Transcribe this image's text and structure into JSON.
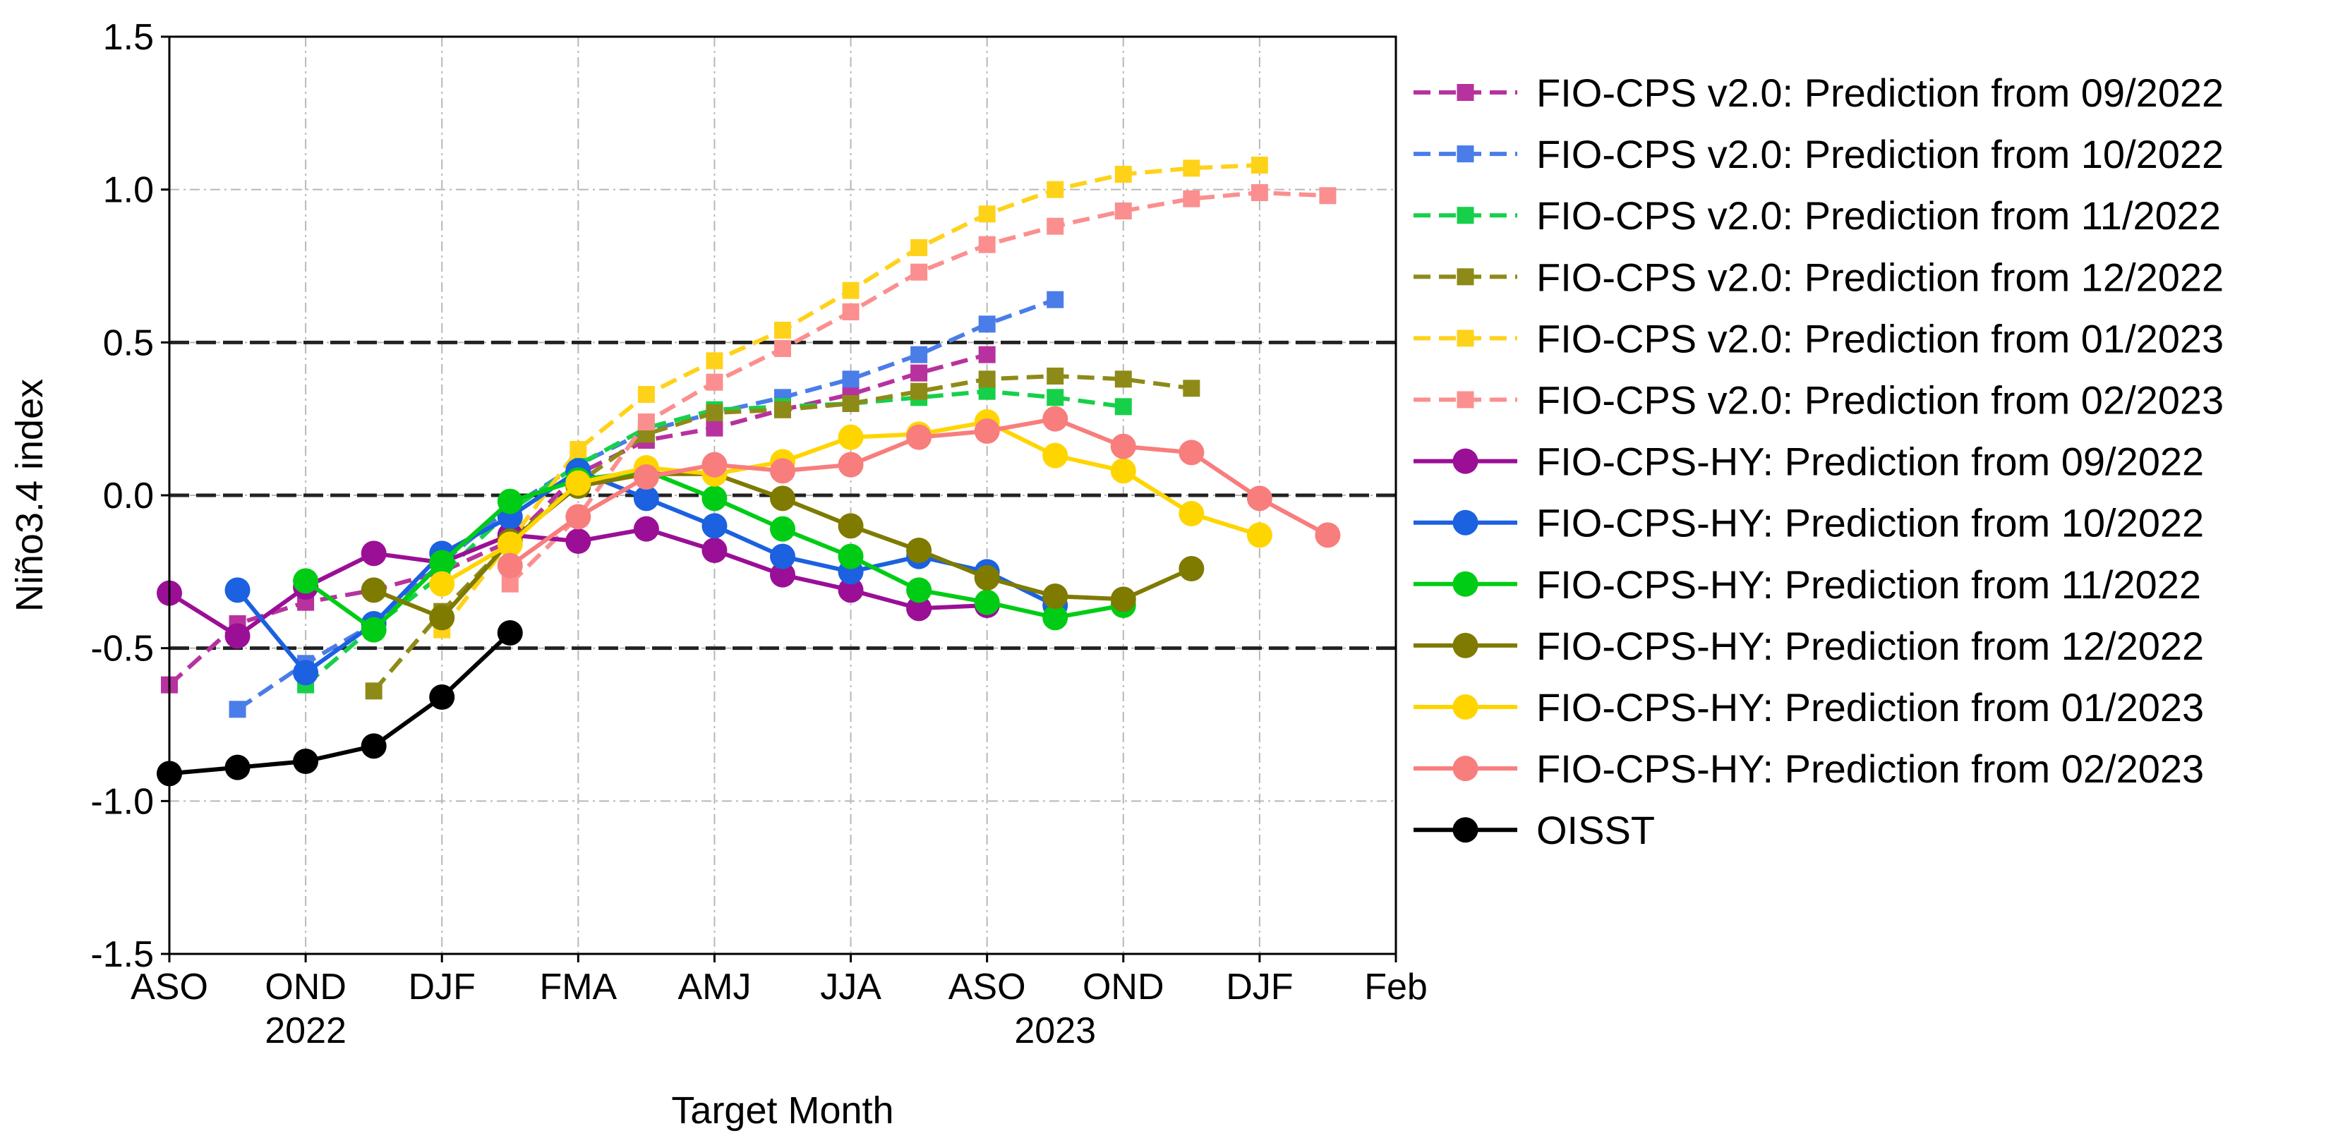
{
  "chart_data": {
    "type": "line",
    "xlabel": "Target Month",
    "ylabel": "Niño3.4 index",
    "xlim": [
      0,
      18
    ],
    "ylim": [
      -1.5,
      1.5
    ],
    "x_ticks": [
      {
        "x": 0,
        "label": "ASO"
      },
      {
        "x": 2,
        "label": "OND"
      },
      {
        "x": 4,
        "label": "DJF"
      },
      {
        "x": 6,
        "label": "FMA"
      },
      {
        "x": 8,
        "label": "AMJ"
      },
      {
        "x": 10,
        "label": "JJA"
      },
      {
        "x": 12,
        "label": "ASO"
      },
      {
        "x": 14,
        "label": "OND"
      },
      {
        "x": 16,
        "label": "DJF"
      },
      {
        "x": 18,
        "label": "Feb"
      }
    ],
    "year_labels": [
      {
        "x": 2,
        "label": "2022"
      },
      {
        "x": 13,
        "label": "2023"
      }
    ],
    "y_ticks": [
      {
        "y": 1.5,
        "label": "1.5"
      },
      {
        "y": 1.0,
        "label": "1.0"
      },
      {
        "y": 0.5,
        "label": "0.5"
      },
      {
        "y": 0.0,
        "label": "0.0"
      },
      {
        "y": -0.5,
        "label": "-0.5"
      },
      {
        "y": -1.0,
        "label": "-1.0"
      },
      {
        "y": -1.5,
        "label": "-1.5"
      }
    ],
    "reference_lines": [
      0.5,
      0.0,
      -0.5
    ],
    "grid": true,
    "legend_position": "outside-right",
    "series": [
      {
        "name": "FIO-CPS v2.0: Prediction from 09/2022",
        "color": "#b7329e",
        "style": "dashed",
        "marker": "square",
        "x": [
          0,
          1,
          2,
          3,
          4,
          5,
          6,
          7,
          8,
          9,
          10,
          11,
          12
        ],
        "values": [
          -0.62,
          -0.42,
          -0.35,
          -0.31,
          -0.25,
          -0.15,
          0.07,
          0.18,
          0.22,
          0.28,
          0.33,
          0.4,
          0.46
        ]
      },
      {
        "name": "FIO-CPS v2.0: Prediction from 10/2022",
        "color": "#4a7de8",
        "style": "dashed",
        "marker": "square",
        "x": [
          1,
          2,
          3,
          4,
          5,
          6,
          7,
          8,
          9,
          10,
          11,
          12,
          13
        ],
        "values": [
          -0.7,
          -0.55,
          -0.42,
          -0.22,
          -0.04,
          0.1,
          0.21,
          0.27,
          0.32,
          0.38,
          0.46,
          0.56,
          0.64
        ]
      },
      {
        "name": "FIO-CPS v2.0: Prediction from 11/2022",
        "color": "#16d04a",
        "style": "dashed",
        "marker": "square",
        "x": [
          2,
          3,
          4,
          5,
          6,
          7,
          8,
          9,
          10,
          11,
          12,
          13,
          14
        ],
        "values": [
          -0.62,
          -0.43,
          -0.26,
          -0.05,
          0.1,
          0.22,
          0.28,
          0.29,
          0.3,
          0.32,
          0.34,
          0.32,
          0.29
        ]
      },
      {
        "name": "FIO-CPS v2.0: Prediction from 12/2022",
        "color": "#8e8a18",
        "style": "dashed",
        "marker": "square",
        "x": [
          3,
          4,
          5,
          6,
          7,
          8,
          9,
          10,
          11,
          12,
          13,
          14,
          15
        ],
        "values": [
          -0.64,
          -0.38,
          -0.15,
          0.04,
          0.2,
          0.27,
          0.28,
          0.3,
          0.34,
          0.38,
          0.39,
          0.38,
          0.35
        ]
      },
      {
        "name": "FIO-CPS v2.0: Prediction from 01/2023",
        "color": "#ffd21a",
        "style": "dashed",
        "marker": "square",
        "x": [
          4,
          5,
          6,
          7,
          8,
          9,
          10,
          11,
          12,
          13,
          14,
          15,
          16
        ],
        "values": [
          -0.44,
          -0.15,
          0.15,
          0.33,
          0.44,
          0.54,
          0.67,
          0.81,
          0.92,
          1.0,
          1.05,
          1.07,
          1.08
        ]
      },
      {
        "name": "FIO-CPS v2.0: Prediction from 02/2023",
        "color": "#fb8f8f",
        "style": "dashed",
        "marker": "square",
        "x": [
          5,
          6,
          7,
          8,
          9,
          10,
          11,
          12,
          13,
          14,
          15,
          16,
          17
        ],
        "values": [
          -0.29,
          -0.07,
          0.24,
          0.37,
          0.48,
          0.6,
          0.73,
          0.82,
          0.88,
          0.93,
          0.97,
          0.99,
          0.98
        ]
      },
      {
        "name": "FIO-CPS-HY: Prediction from 09/2022",
        "color": "#9a0f96",
        "style": "solid",
        "marker": "circle",
        "x": [
          0,
          1,
          2,
          3,
          4,
          5,
          6,
          7,
          8,
          9,
          10,
          11,
          12
        ],
        "values": [
          -0.32,
          -0.46,
          -0.3,
          -0.19,
          -0.22,
          -0.13,
          -0.15,
          -0.11,
          -0.18,
          -0.26,
          -0.31,
          -0.37,
          -0.36
        ]
      },
      {
        "name": "FIO-CPS-HY: Prediction from 10/2022",
        "color": "#1b61e0",
        "style": "solid",
        "marker": "circle",
        "x": [
          1,
          2,
          3,
          4,
          5,
          6,
          7,
          8,
          9,
          10,
          11,
          12,
          13
        ],
        "values": [
          -0.31,
          -0.58,
          -0.42,
          -0.19,
          -0.07,
          0.08,
          -0.01,
          -0.1,
          -0.2,
          -0.25,
          -0.2,
          -0.25,
          -0.36
        ]
      },
      {
        "name": "FIO-CPS-HY: Prediction from 11/2022",
        "color": "#00cc15",
        "style": "solid",
        "marker": "circle",
        "x": [
          2,
          3,
          4,
          5,
          6,
          7,
          8,
          9,
          10,
          11,
          12,
          13,
          14
        ],
        "values": [
          -0.28,
          -0.44,
          -0.22,
          -0.02,
          0.05,
          0.08,
          -0.01,
          -0.11,
          -0.2,
          -0.31,
          -0.35,
          -0.4,
          -0.36
        ]
      },
      {
        "name": "FIO-CPS-HY: Prediction from 12/2022",
        "color": "#7f7a00",
        "style": "solid",
        "marker": "circle",
        "x": [
          3,
          4,
          5,
          6,
          7,
          8,
          9,
          10,
          11,
          12,
          13,
          14,
          15
        ],
        "values": [
          -0.31,
          -0.4,
          -0.15,
          0.03,
          0.07,
          0.07,
          -0.01,
          -0.1,
          -0.18,
          -0.27,
          -0.33,
          -0.34,
          -0.24
        ]
      },
      {
        "name": "FIO-CPS-HY: Prediction from 01/2023",
        "color": "#ffd500",
        "style": "solid",
        "marker": "circle",
        "x": [
          4,
          5,
          6,
          7,
          8,
          9,
          10,
          11,
          12,
          13,
          14,
          15,
          16
        ],
        "values": [
          -0.29,
          -0.16,
          0.04,
          0.09,
          0.07,
          0.11,
          0.19,
          0.2,
          0.24,
          0.13,
          0.08,
          -0.06,
          -0.13
        ]
      },
      {
        "name": "FIO-CPS-HY: Prediction from 02/2023",
        "color": "#f87d7d",
        "style": "solid",
        "marker": "circle",
        "x": [
          5,
          6,
          7,
          8,
          9,
          10,
          11,
          12,
          13,
          14,
          15,
          16,
          17
        ],
        "values": [
          -0.23,
          -0.07,
          0.06,
          0.1,
          0.08,
          0.1,
          0.19,
          0.21,
          0.25,
          0.16,
          0.14,
          -0.01,
          -0.13
        ]
      },
      {
        "name": "OISST",
        "color": "#000000",
        "style": "solid",
        "marker": "circle",
        "x": [
          0,
          1,
          2,
          3,
          4,
          5
        ],
        "values": [
          -0.91,
          -0.89,
          -0.87,
          -0.82,
          -0.66,
          -0.45
        ]
      }
    ]
  }
}
